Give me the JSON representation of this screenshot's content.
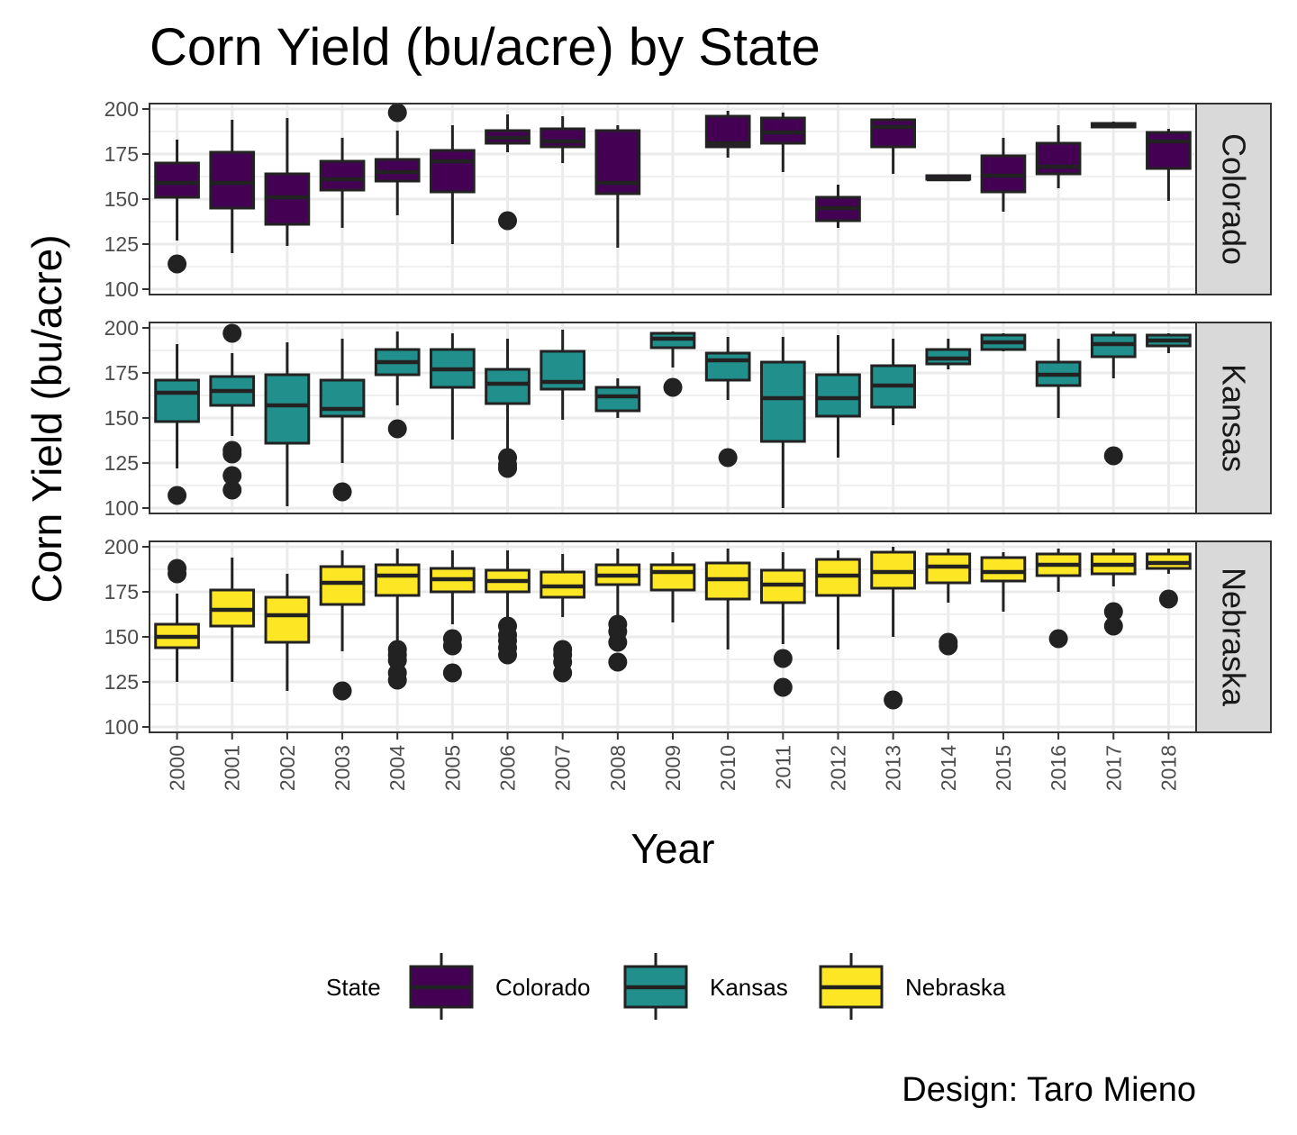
{
  "chart_data": {
    "type": "boxplot",
    "title": "Corn Yield (bu/acre) by State",
    "xlabel": "Year",
    "ylabel": "Corn Yield (bu/acre)",
    "caption": "Design: Taro Mieno",
    "categories": [
      "2000",
      "2001",
      "2002",
      "2003",
      "2004",
      "2005",
      "2006",
      "2007",
      "2008",
      "2009",
      "2010",
      "2011",
      "2012",
      "2013",
      "2014",
      "2015",
      "2016",
      "2017",
      "2018"
    ],
    "ylim": [
      97,
      203
    ],
    "yticks": [
      100,
      125,
      150,
      175,
      200
    ],
    "ytick_labels": [
      "100",
      "125",
      "150",
      "175",
      "200"
    ],
    "grid": true,
    "facet_direction": "rows",
    "legend": {
      "title": "State",
      "position": "bottom",
      "entries": [
        "Colorado",
        "Kansas",
        "Nebraska"
      ]
    },
    "colors": {
      "Colorado": "#440154",
      "Kansas": "#21908C",
      "Nebraska": "#FDE725",
      "outline": "#222222",
      "grid": "#ebebeb",
      "strip": "#d9d9d9"
    },
    "facets": [
      {
        "name": "Colorado",
        "boxes": [
          {
            "year": "2000",
            "q1": 151,
            "median": 159,
            "q3": 170,
            "whisker_low": 127,
            "whisker_high": 183,
            "outliers": [
              114
            ]
          },
          {
            "year": "2001",
            "q1": 145,
            "median": 159,
            "q3": 176,
            "whisker_low": 120,
            "whisker_high": 194,
            "outliers": []
          },
          {
            "year": "2002",
            "q1": 136,
            "median": 151,
            "q3": 164,
            "whisker_low": 124,
            "whisker_high": 195,
            "outliers": []
          },
          {
            "year": "2003",
            "q1": 155,
            "median": 161,
            "q3": 171,
            "whisker_low": 134,
            "whisker_high": 184,
            "outliers": []
          },
          {
            "year": "2004",
            "q1": 160,
            "median": 165,
            "q3": 172,
            "whisker_low": 141,
            "whisker_high": 188,
            "outliers": [
              198
            ]
          },
          {
            "year": "2005",
            "q1": 154,
            "median": 171,
            "q3": 177,
            "whisker_low": 125,
            "whisker_high": 191,
            "outliers": []
          },
          {
            "year": "2006",
            "q1": 181,
            "median": 184,
            "q3": 188,
            "whisker_low": 176,
            "whisker_high": 197,
            "outliers": [
              138
            ]
          },
          {
            "year": "2007",
            "q1": 179,
            "median": 182,
            "q3": 189,
            "whisker_low": 170,
            "whisker_high": 196,
            "outliers": []
          },
          {
            "year": "2008",
            "q1": 153,
            "median": 159,
            "q3": 188,
            "whisker_low": 123,
            "whisker_high": 191,
            "outliers": []
          },
          {
            "year": "2010",
            "q1": 179,
            "median": 181,
            "q3": 196,
            "whisker_low": 173,
            "whisker_high": 199,
            "outliers": []
          },
          {
            "year": "2011",
            "q1": 181,
            "median": 187,
            "q3": 195,
            "whisker_low": 165,
            "whisker_high": 198,
            "outliers": []
          },
          {
            "year": "2012",
            "q1": 138,
            "median": 145,
            "q3": 151,
            "whisker_low": 134,
            "whisker_high": 158,
            "outliers": []
          },
          {
            "year": "2013",
            "q1": 179,
            "median": 190,
            "q3": 194,
            "whisker_low": 164,
            "whisker_high": 195,
            "outliers": []
          },
          {
            "year": "2014",
            "q1": 161,
            "median": 161,
            "q3": 163,
            "whisker_low": 161,
            "whisker_high": 163,
            "outliers": []
          },
          {
            "year": "2015",
            "q1": 154,
            "median": 163,
            "q3": 174,
            "whisker_low": 143,
            "whisker_high": 184,
            "outliers": []
          },
          {
            "year": "2016",
            "q1": 164,
            "median": 168,
            "q3": 181,
            "whisker_low": 156,
            "whisker_high": 191,
            "outliers": []
          },
          {
            "year": "2017",
            "q1": 190,
            "median": 191,
            "q3": 192,
            "whisker_low": 190,
            "whisker_high": 193,
            "outliers": []
          },
          {
            "year": "2018",
            "q1": 167,
            "median": 182,
            "q3": 187,
            "whisker_low": 149,
            "whisker_high": 189,
            "outliers": []
          }
        ]
      },
      {
        "name": "Kansas",
        "boxes": [
          {
            "year": "2000",
            "q1": 148,
            "median": 164,
            "q3": 171,
            "whisker_low": 122,
            "whisker_high": 191,
            "outliers": [
              107
            ]
          },
          {
            "year": "2001",
            "q1": 157,
            "median": 165,
            "q3": 173,
            "whisker_low": 140,
            "whisker_high": 186,
            "outliers": [
              132,
              130,
              118,
              110,
              197
            ]
          },
          {
            "year": "2002",
            "q1": 136,
            "median": 157,
            "q3": 174,
            "whisker_low": 101,
            "whisker_high": 192,
            "outliers": []
          },
          {
            "year": "2003",
            "q1": 151,
            "median": 155,
            "q3": 171,
            "whisker_low": 125,
            "whisker_high": 194,
            "outliers": [
              109
            ]
          },
          {
            "year": "2004",
            "q1": 174,
            "median": 181,
            "q3": 188,
            "whisker_low": 157,
            "whisker_high": 198,
            "outliers": [
              144
            ]
          },
          {
            "year": "2005",
            "q1": 167,
            "median": 177,
            "q3": 188,
            "whisker_low": 138,
            "whisker_high": 197,
            "outliers": []
          },
          {
            "year": "2006",
            "q1": 158,
            "median": 169,
            "q3": 177,
            "whisker_low": 130,
            "whisker_high": 194,
            "outliers": [
              128,
              124,
              122
            ]
          },
          {
            "year": "2007",
            "q1": 166,
            "median": 170,
            "q3": 187,
            "whisker_low": 149,
            "whisker_high": 199,
            "outliers": []
          },
          {
            "year": "2008",
            "q1": 154,
            "median": 162,
            "q3": 167,
            "whisker_low": 150,
            "whisker_high": 172,
            "outliers": []
          },
          {
            "year": "2009",
            "q1": 189,
            "median": 194,
            "q3": 197,
            "whisker_low": 178,
            "whisker_high": 198,
            "outliers": [
              167
            ]
          },
          {
            "year": "2010",
            "q1": 171,
            "median": 182,
            "q3": 186,
            "whisker_low": 160,
            "whisker_high": 195,
            "outliers": [
              128
            ]
          },
          {
            "year": "2011",
            "q1": 137,
            "median": 161,
            "q3": 181,
            "whisker_low": 100,
            "whisker_high": 195,
            "outliers": []
          },
          {
            "year": "2012",
            "q1": 151,
            "median": 161,
            "q3": 174,
            "whisker_low": 128,
            "whisker_high": 196,
            "outliers": []
          },
          {
            "year": "2013",
            "q1": 156,
            "median": 168,
            "q3": 179,
            "whisker_low": 146,
            "whisker_high": 194,
            "outliers": []
          },
          {
            "year": "2014",
            "q1": 180,
            "median": 183,
            "q3": 188,
            "whisker_low": 177,
            "whisker_high": 194,
            "outliers": []
          },
          {
            "year": "2015",
            "q1": 188,
            "median": 192,
            "q3": 196,
            "whisker_low": 187,
            "whisker_high": 197,
            "outliers": []
          },
          {
            "year": "2016",
            "q1": 168,
            "median": 174,
            "q3": 181,
            "whisker_low": 150,
            "whisker_high": 194,
            "outliers": []
          },
          {
            "year": "2017",
            "q1": 184,
            "median": 191,
            "q3": 196,
            "whisker_low": 172,
            "whisker_high": 198,
            "outliers": [
              129
            ]
          },
          {
            "year": "2018",
            "q1": 190,
            "median": 193,
            "q3": 196,
            "whisker_low": 186,
            "whisker_high": 197,
            "outliers": []
          }
        ]
      },
      {
        "name": "Nebraska",
        "boxes": [
          {
            "year": "2000",
            "q1": 144,
            "median": 150,
            "q3": 157,
            "whisker_low": 125,
            "whisker_high": 174,
            "outliers": [
              188,
              185
            ]
          },
          {
            "year": "2001",
            "q1": 156,
            "median": 165,
            "q3": 176,
            "whisker_low": 125,
            "whisker_high": 194,
            "outliers": []
          },
          {
            "year": "2002",
            "q1": 147,
            "median": 162,
            "q3": 172,
            "whisker_low": 120,
            "whisker_high": 185,
            "outliers": []
          },
          {
            "year": "2003",
            "q1": 168,
            "median": 180,
            "q3": 189,
            "whisker_low": 142,
            "whisker_high": 198,
            "outliers": [
              120
            ]
          },
          {
            "year": "2004",
            "q1": 173,
            "median": 184,
            "q3": 190,
            "whisker_low": 148,
            "whisker_high": 199,
            "outliers": [
              143,
              140,
              137,
              130,
              126
            ]
          },
          {
            "year": "2005",
            "q1": 175,
            "median": 182,
            "q3": 188,
            "whisker_low": 157,
            "whisker_high": 198,
            "outliers": [
              149,
              145,
              130
            ]
          },
          {
            "year": "2006",
            "q1": 175,
            "median": 181,
            "q3": 187,
            "whisker_low": 158,
            "whisker_high": 198,
            "outliers": [
              156,
              151,
              148,
              144,
              140
            ]
          },
          {
            "year": "2007",
            "q1": 172,
            "median": 178,
            "q3": 186,
            "whisker_low": 161,
            "whisker_high": 196,
            "outliers": [
              143,
              140,
              136,
              130
            ]
          },
          {
            "year": "2008",
            "q1": 179,
            "median": 184,
            "q3": 190,
            "whisker_low": 160,
            "whisker_high": 199,
            "outliers": [
              157,
              153,
              147,
              136
            ]
          },
          {
            "year": "2009",
            "q1": 176,
            "median": 186,
            "q3": 190,
            "whisker_low": 158,
            "whisker_high": 197,
            "outliers": []
          },
          {
            "year": "2010",
            "q1": 171,
            "median": 182,
            "q3": 191,
            "whisker_low": 143,
            "whisker_high": 199,
            "outliers": []
          },
          {
            "year": "2011",
            "q1": 169,
            "median": 179,
            "q3": 187,
            "whisker_low": 146,
            "whisker_high": 197,
            "outliers": [
              138,
              122
            ]
          },
          {
            "year": "2012",
            "q1": 173,
            "median": 184,
            "q3": 193,
            "whisker_low": 143,
            "whisker_high": 198,
            "outliers": []
          },
          {
            "year": "2013",
            "q1": 177,
            "median": 186,
            "q3": 197,
            "whisker_low": 150,
            "whisker_high": 200,
            "outliers": [
              115
            ]
          },
          {
            "year": "2014",
            "q1": 180,
            "median": 189,
            "q3": 196,
            "whisker_low": 169,
            "whisker_high": 199,
            "outliers": [
              147,
              145
            ]
          },
          {
            "year": "2015",
            "q1": 181,
            "median": 186,
            "q3": 194,
            "whisker_low": 164,
            "whisker_high": 197,
            "outliers": []
          },
          {
            "year": "2016",
            "q1": 184,
            "median": 190,
            "q3": 196,
            "whisker_low": 175,
            "whisker_high": 199,
            "outliers": [
              149
            ]
          },
          {
            "year": "2017",
            "q1": 185,
            "median": 190,
            "q3": 196,
            "whisker_low": 178,
            "whisker_high": 199,
            "outliers": [
              164,
              156
            ]
          },
          {
            "year": "2018",
            "q1": 188,
            "median": 191,
            "q3": 196,
            "whisker_low": 185,
            "whisker_high": 199,
            "outliers": [
              171
            ]
          }
        ]
      }
    ]
  }
}
